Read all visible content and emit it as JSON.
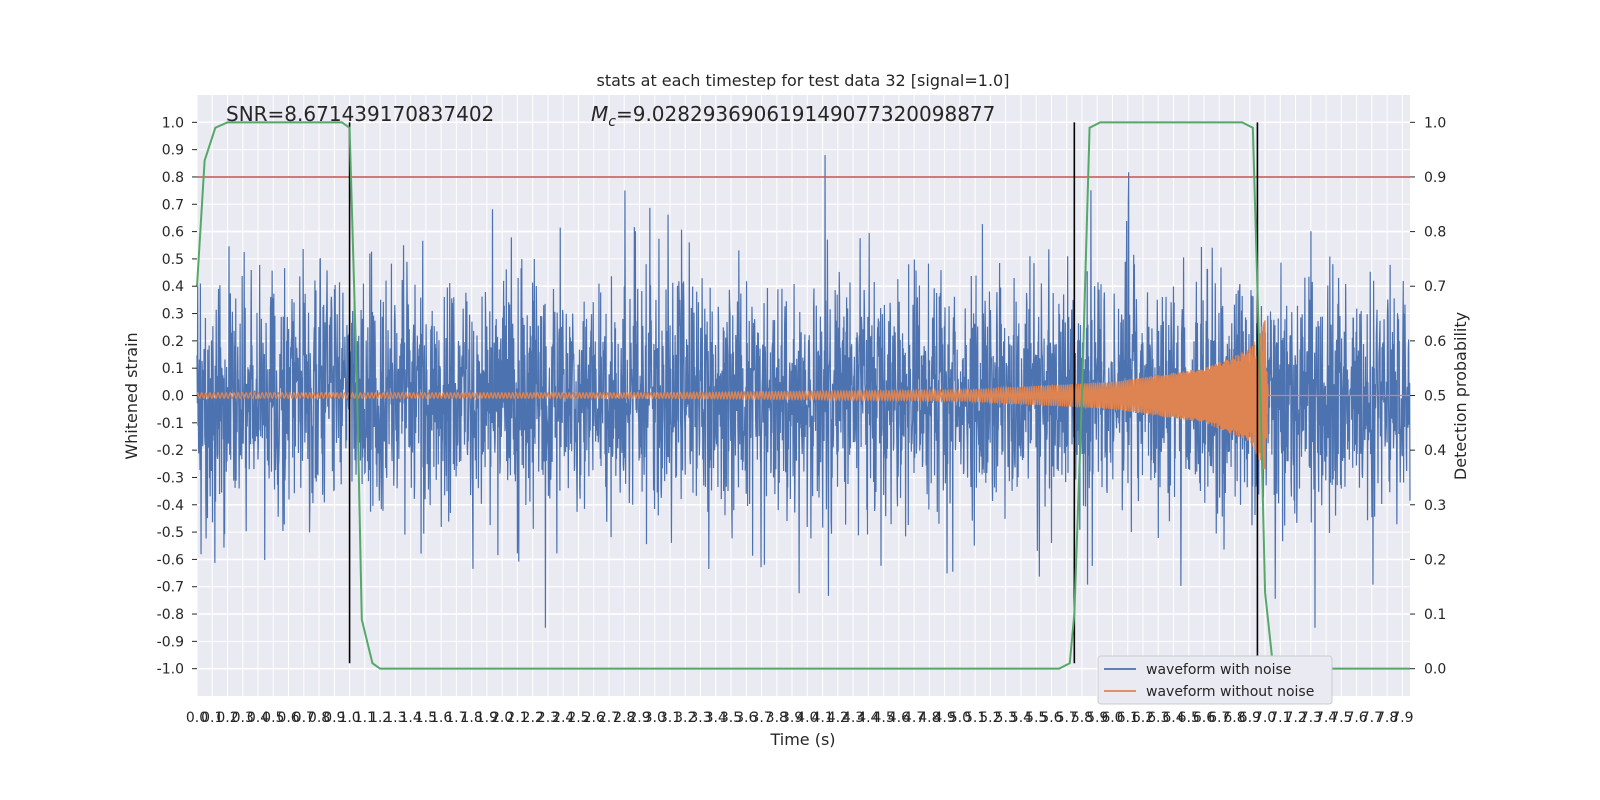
{
  "chart_data": {
    "type": "line",
    "title": "stats at each timestep for test data 32 [signal=1.0]",
    "xlabel": "Time (s)",
    "ylabel": "Whitened strain",
    "ylabel_right": "Detection probability",
    "xlim": [
      0.0,
      7.95
    ],
    "ylim": [
      -1.1,
      1.1
    ],
    "ylim_right": [
      -0.05,
      1.05
    ],
    "xticks": [
      "0.0",
      "0.1",
      "0.2",
      "0.3",
      "0.4",
      "0.5",
      "0.6",
      "0.7",
      "0.8",
      "0.9",
      "1.0",
      "1.1",
      "1.2",
      "1.3",
      "1.4",
      "1.5",
      "1.6",
      "1.7",
      "1.8",
      "1.9",
      "2.0",
      "2.1",
      "2.2",
      "2.3",
      "2.4",
      "2.5",
      "2.6",
      "2.7",
      "2.8",
      "2.9",
      "3.0",
      "3.1",
      "3.2",
      "3.3",
      "3.4",
      "3.5",
      "3.6",
      "3.7",
      "3.8",
      "3.9",
      "4.0",
      "4.1",
      "4.2",
      "4.3",
      "4.4",
      "4.5",
      "4.6",
      "4.7",
      "4.8",
      "4.9",
      "5.0",
      "5.1",
      "5.2",
      "5.3",
      "5.4",
      "5.5",
      "5.6",
      "5.7",
      "5.8",
      "5.9",
      "6.0",
      "6.1",
      "6.2",
      "6.3",
      "6.4",
      "6.5",
      "6.6",
      "6.7",
      "6.8",
      "6.9",
      "7.0",
      "7.1",
      "7.2",
      "7.3",
      "7.4",
      "7.5",
      "7.6",
      "7.7",
      "7.8",
      "7.9"
    ],
    "yticks": [
      "1.0",
      "0.9",
      "0.8",
      "0.7",
      "0.6",
      "0.5",
      "0.4",
      "0.3",
      "0.2",
      "0.1",
      "0.0",
      "-0.1",
      "-0.2",
      "-0.3",
      "-0.4",
      "-0.5",
      "-0.6",
      "-0.7",
      "-0.8",
      "-0.9",
      "-1.0"
    ],
    "yticks_right": [
      "1.0",
      "0.9",
      "0.8",
      "0.7",
      "0.6",
      "0.5",
      "0.4",
      "0.3",
      "0.2",
      "0.1",
      "0.0"
    ],
    "annotations": {
      "snr": "SNR=8.671439170837402",
      "mc": "=9.028293690619149077320098877",
      "mc_symbol": "M",
      "mc_subscript": "c"
    },
    "threshold": {
      "y": 0.8,
      "color": "#c44e52"
    },
    "vertical_lines": [
      1.0,
      5.75,
      6.95
    ],
    "series": [
      {
        "name": "waveform with noise",
        "color": "#4c72b0",
        "envelope_typical": 0.45,
        "peak_max": 1.0
      },
      {
        "name": "waveform without noise",
        "color": "#dd8452",
        "amplitude_points": [
          [
            0.0,
            0.01
          ],
          [
            3.0,
            0.01
          ],
          [
            5.0,
            0.02
          ],
          [
            6.0,
            0.05
          ],
          [
            6.6,
            0.1
          ],
          [
            6.9,
            0.17
          ],
          [
            7.0,
            0.28
          ],
          [
            7.02,
            0.0
          ]
        ]
      },
      {
        "color": "#55a868",
        "axis": "right",
        "points": [
          [
            0.0,
            0.7
          ],
          [
            0.05,
            0.93
          ],
          [
            0.12,
            0.99
          ],
          [
            0.2,
            1.0
          ],
          [
            0.95,
            1.0
          ],
          [
            1.0,
            0.99
          ],
          [
            1.05,
            0.5
          ],
          [
            1.08,
            0.09
          ],
          [
            1.15,
            0.01
          ],
          [
            1.2,
            0.0
          ],
          [
            5.65,
            0.0
          ],
          [
            5.72,
            0.01
          ],
          [
            5.75,
            0.1
          ],
          [
            5.8,
            0.5
          ],
          [
            5.85,
            0.99
          ],
          [
            5.92,
            1.0
          ],
          [
            6.85,
            1.0
          ],
          [
            6.92,
            0.99
          ],
          [
            6.97,
            0.5
          ],
          [
            7.0,
            0.14
          ],
          [
            7.05,
            0.01
          ],
          [
            7.1,
            0.0
          ],
          [
            7.95,
            0.0
          ]
        ]
      }
    ],
    "legend": {
      "placement": "lower-right"
    },
    "grid": true
  }
}
